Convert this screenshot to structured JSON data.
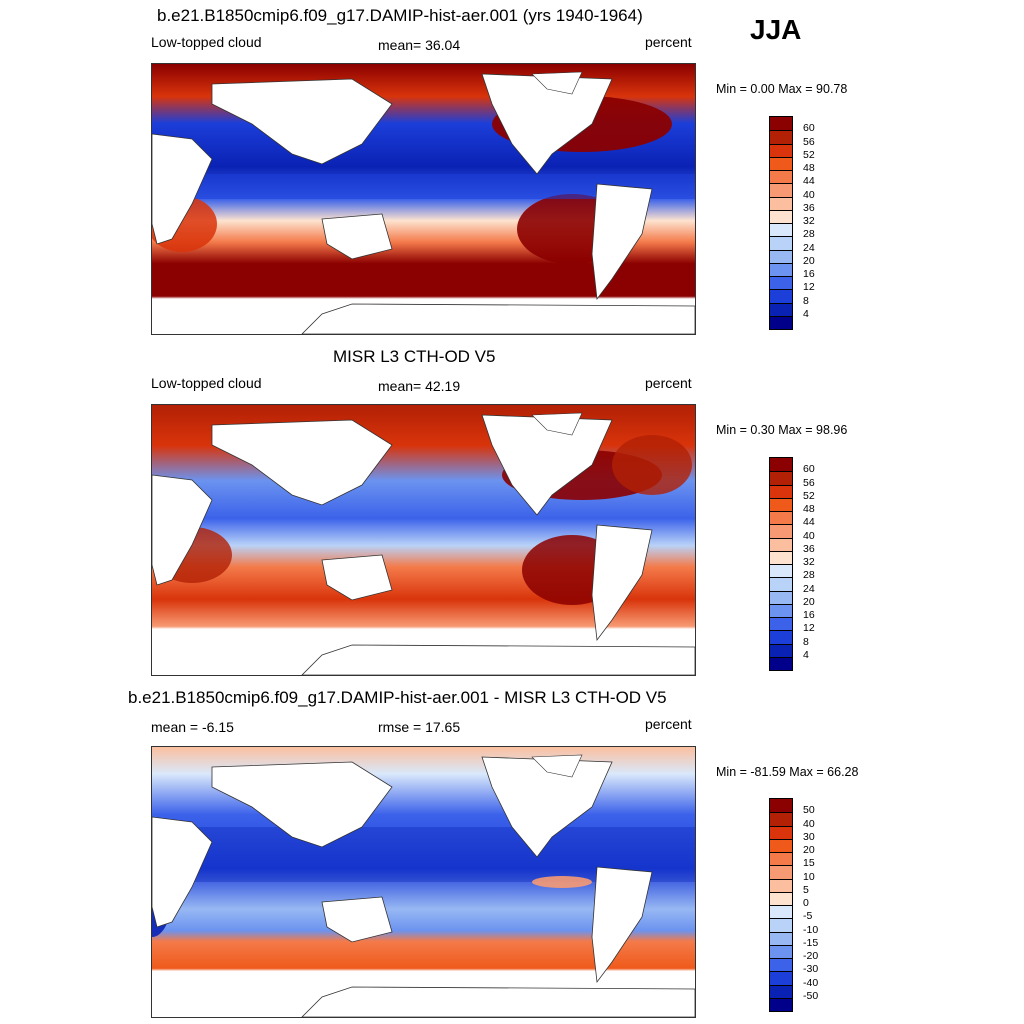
{
  "season": "JJA",
  "panels": [
    {
      "title": "b.e21.B1850cmip6.f09_g17.DAMIP-hist-aer.001 (yrs 1940-1964)",
      "left_label": "Low-topped cloud",
      "center_label": "mean=  36.04",
      "right_label": "percent",
      "minmax": "Min =   0.00 Max =  90.78",
      "colorbar_ticks": [
        "60",
        "56",
        "52",
        "48",
        "44",
        "40",
        "36",
        "32",
        "28",
        "24",
        "20",
        "16",
        "12",
        "8",
        "4"
      ],
      "colors": [
        "#8b0000",
        "#b22005",
        "#d9340b",
        "#ef5a1a",
        "#f47a4a",
        "#f79a73",
        "#fbbf9f",
        "#fde3cf",
        "#d9e8fb",
        "#b9d2f8",
        "#98b8f3",
        "#6b93ef",
        "#3c62ea",
        "#1c3ed9",
        "#0a22b4",
        "#00008b"
      ]
    },
    {
      "title": "MISR L3 CTH-OD V5",
      "left_label": "Low-topped cloud",
      "center_label": "mean=  42.19",
      "right_label": "percent",
      "minmax": "Min =   0.30 Max =  98.96",
      "colorbar_ticks": [
        "60",
        "56",
        "52",
        "48",
        "44",
        "40",
        "36",
        "32",
        "28",
        "24",
        "20",
        "16",
        "12",
        "8",
        "4"
      ],
      "colors": [
        "#8b0000",
        "#b22005",
        "#d9340b",
        "#ef5a1a",
        "#f47a4a",
        "#f79a73",
        "#fbbf9f",
        "#fde3cf",
        "#d9e8fb",
        "#b9d2f8",
        "#98b8f3",
        "#6b93ef",
        "#3c62ea",
        "#1c3ed9",
        "#0a22b4",
        "#00008b"
      ]
    },
    {
      "title": "b.e21.B1850cmip6.f09_g17.DAMIP-hist-aer.001 - MISR L3 CTH-OD V5",
      "left_label": "mean =  -6.15",
      "center_label": "rmse =  17.65",
      "right_label": "percent",
      "minmax": "Min = -81.59 Max =  66.28",
      "colorbar_ticks": [
        "50",
        "40",
        "30",
        "20",
        "15",
        "10",
        "5",
        "0",
        "-5",
        "-10",
        "-15",
        "-20",
        "-30",
        "-40",
        "-50"
      ],
      "colors": [
        "#8b0000",
        "#b22005",
        "#d9340b",
        "#ef5a1a",
        "#f47a4a",
        "#f79a73",
        "#fbbf9f",
        "#fde3cf",
        "#d9e8fb",
        "#b9d2f8",
        "#98b8f3",
        "#6b93ef",
        "#3c62ea",
        "#1c3ed9",
        "#0a22b4",
        "#00008b"
      ]
    }
  ]
}
